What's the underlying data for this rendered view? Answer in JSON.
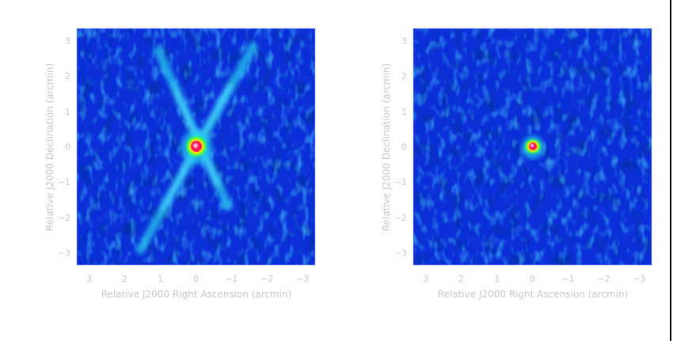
{
  "panels": [
    {
      "id": "left",
      "xlabel": "Relative J2000 Right Ascension (arcmin)",
      "ylabel": "Relative J2000 Declination (arcmin)",
      "xticks": [
        "3",
        "2",
        "1",
        "0",
        "−1",
        "−2",
        "−3"
      ],
      "yticks": [
        "3",
        "2",
        "1",
        "0",
        "−1",
        "−2",
        "−3"
      ],
      "xlim": [
        3.35,
        -3.35
      ],
      "ylim": [
        -3.35,
        3.35
      ],
      "source": {
        "ra": 0.05,
        "dec": 0.05
      },
      "sidelobes": "x-pattern"
    },
    {
      "id": "right",
      "xlabel": "Relative J2000 Right Ascension (arcmin)",
      "ylabel": "Relative J2000 Declination (arcmin)",
      "xticks": [
        "3",
        "2",
        "1",
        "0",
        "−1",
        "−2",
        "−3"
      ],
      "yticks": [
        "3",
        "2",
        "1",
        "0",
        "−1",
        "−2",
        "−3"
      ],
      "xlim": [
        3.35,
        -3.35
      ],
      "ylim": [
        -3.35,
        3.35
      ],
      "source": {
        "ra": 0.05,
        "dec": 0.05
      },
      "sidelobes": "none"
    }
  ],
  "colors": {
    "background_noise": "#0a2fd8",
    "noise_dark": "#001070",
    "noise_bright": "#27c8f0",
    "peak_outer": "#20ff60",
    "peak_mid": "#ffe000",
    "peak_inner": "#ff1a60",
    "peak_core": "#ffb0d0",
    "axis_text": "#c8c8c8"
  }
}
